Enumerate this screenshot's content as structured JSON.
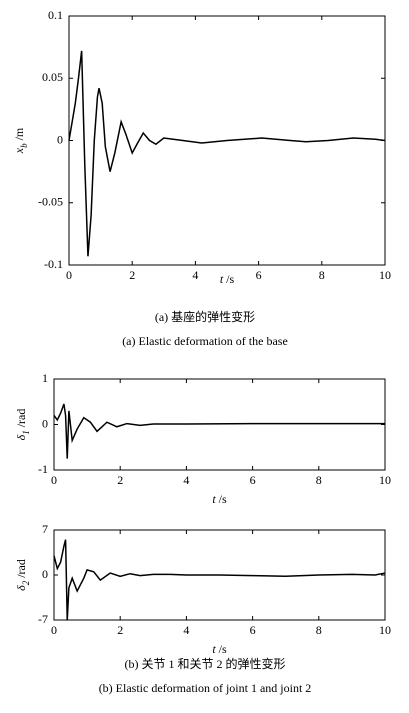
{
  "chart_data": [
    {
      "type": "line",
      "color": "#000000",
      "x": [
        0,
        0.1,
        0.2,
        0.3,
        0.4,
        0.5,
        0.6,
        0.7,
        0.8,
        0.9,
        0.95,
        1.05,
        1.15,
        1.3,
        1.45,
        1.65,
        1.8,
        2.0,
        2.15,
        2.35,
        2.55,
        2.75,
        3.0,
        3.3,
        3.6,
        4.2,
        5,
        6.1,
        7,
        7.5,
        8.2,
        9,
        9.7,
        10
      ],
      "values": [
        0,
        0.015,
        0.03,
        0.05,
        0.072,
        -0.02,
        -0.093,
        -0.06,
        0.0,
        0.035,
        0.042,
        0.03,
        -0.005,
        -0.025,
        -0.01,
        0.015,
        0.005,
        -0.01,
        -0.003,
        0.006,
        0.0,
        -0.003,
        0.002,
        0.001,
        0,
        -0.002,
        0,
        0.002,
        0,
        -0.001,
        0,
        0.002,
        0.001,
        0
      ],
      "xlim": [
        0,
        10
      ],
      "xticks": [
        0,
        2,
        4,
        6,
        8,
        10
      ],
      "ylim": [
        -0.1,
        0.1
      ],
      "yticks": [
        -0.1,
        -0.05,
        0,
        0.05,
        0.1
      ],
      "xlabel": {
        "symbol": "t",
        "unit": "/s"
      },
      "ylabel": {
        "symbol": "x",
        "subscript": "b",
        "unit": "/m"
      }
    },
    {
      "type": "line",
      "color": "#000000",
      "x": [
        0,
        0.1,
        0.2,
        0.3,
        0.35,
        0.4,
        0.45,
        0.55,
        0.7,
        0.9,
        1.1,
        1.3,
        1.6,
        1.9,
        2.2,
        2.6,
        3,
        4,
        6,
        8,
        10
      ],
      "values": [
        0.2,
        0.1,
        0.25,
        0.45,
        0.2,
        -0.75,
        0.3,
        -0.35,
        -0.1,
        0.15,
        0.05,
        -0.15,
        0.05,
        -0.05,
        0.02,
        -0.02,
        0.01,
        0.01,
        0.02,
        0.02,
        0.02
      ],
      "xlim": [
        0,
        10
      ],
      "xticks": [
        0,
        2,
        4,
        6,
        8,
        10
      ],
      "ylim": [
        -1,
        1
      ],
      "yticks": [
        -1,
        0,
        1
      ],
      "xlabel": {
        "symbol": "t",
        "unit": "/s"
      },
      "ylabel": {
        "symbol": "δ",
        "subscript": "1",
        "unit": "/rad"
      }
    },
    {
      "type": "line",
      "color": "#000000",
      "x": [
        0,
        0.1,
        0.2,
        0.3,
        0.35,
        0.4,
        0.45,
        0.55,
        0.7,
        0.9,
        1.0,
        1.2,
        1.4,
        1.7,
        2.0,
        2.3,
        2.6,
        3,
        3.5,
        4,
        5,
        6,
        7,
        8,
        9,
        9.7,
        10
      ],
      "values": [
        3,
        1,
        2,
        4.5,
        5.5,
        -7,
        -2,
        -0.5,
        -2.5,
        -0.5,
        0.8,
        0.5,
        -0.8,
        0.3,
        -0.2,
        0.2,
        -0.1,
        0.1,
        0.1,
        0,
        0,
        -0.1,
        -0.2,
        0,
        0.1,
        0,
        0.3
      ],
      "xlim": [
        0,
        10
      ],
      "xticks": [
        0,
        2,
        4,
        6,
        8,
        10
      ],
      "ylim": [
        -7,
        7
      ],
      "yticks": [
        -7,
        0,
        7
      ],
      "xlabel": {
        "symbol": "t",
        "unit": "/s"
      },
      "ylabel": {
        "symbol": "δ",
        "subscript": "2",
        "unit": "/rad"
      }
    }
  ],
  "captions": [
    {
      "zh": "(a) 基座的弹性变形",
      "en": "(a) Elastic deformation of the base"
    },
    {
      "zh": "(b) 关节 1 和关节 2 的弹性变形",
      "en": "(b) Elastic deformation of joint 1 and joint 2"
    }
  ]
}
